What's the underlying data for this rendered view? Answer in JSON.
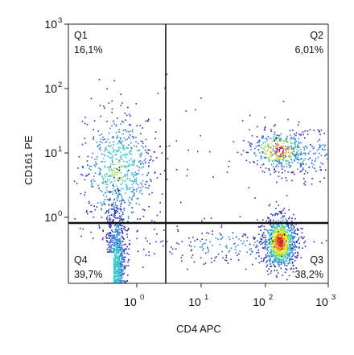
{
  "chart_data": {
    "type": "scatter",
    "xlabel": "CD4 APC",
    "ylabel": "CD161 PE",
    "x_scale": "log",
    "y_scale": "log",
    "x_ticks": [
      {
        "base": "10",
        "exp": "0",
        "value": 1
      },
      {
        "base": "10",
        "exp": "1",
        "value": 10
      },
      {
        "base": "10",
        "exp": "2",
        "value": 100
      },
      {
        "base": "10",
        "exp": "3",
        "value": 1000
      }
    ],
    "y_ticks": [
      {
        "base": "10",
        "exp": "0",
        "value": 1
      },
      {
        "base": "10",
        "exp": "1",
        "value": 10
      },
      {
        "base": "10",
        "exp": "2",
        "value": 100
      },
      {
        "base": "10",
        "exp": "3",
        "value": 1000
      }
    ],
    "quadrants": [
      {
        "name": "Q1",
        "percent": "16,1%"
      },
      {
        "name": "Q2",
        "percent": "6,01%"
      },
      {
        "name": "Q3",
        "percent": "38,2%"
      },
      {
        "name": "Q4",
        "percent": "39,7%"
      }
    ],
    "gates": {
      "x_threshold": 3.0,
      "y_threshold": 0.9
    },
    "populations": [
      {
        "quadrant": "Q4",
        "x_center": 0.3,
        "y_center": 0.2,
        "count": 1100
      },
      {
        "quadrant": "Q3",
        "x_center": 140,
        "y_center": 0.2,
        "count": 1050
      },
      {
        "quadrant": "Q1",
        "x_center": 0.3,
        "y_center": 7,
        "count": 650
      },
      {
        "quadrant": "Q2",
        "x_center": 130,
        "y_center": 8,
        "count": 280
      }
    ],
    "density_colors": [
      "#2a2ab8",
      "#2f80d8",
      "#32c8c8",
      "#8ee04a",
      "#f0e020",
      "#f08a1a",
      "#d82018"
    ],
    "grid": false,
    "legend": "none"
  }
}
